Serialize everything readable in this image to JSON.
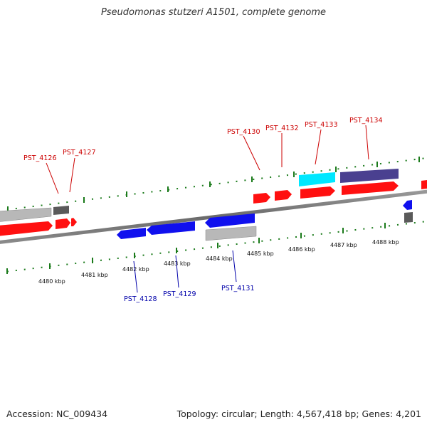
{
  "title": "Pseudomonas stutzeri A1501, complete genome",
  "footer": {
    "accession": "Accession: NC_009434",
    "topology": "Topology: circular; Length: 4,567,418 bp; Genes: 4,201"
  },
  "colors": {
    "forward_gene": "#ff1010",
    "reverse_gene": "#1010ee",
    "pseudo_gene": "#b8b8b8",
    "rna_gene": "#00e8ff",
    "slate_gene": "#4a4090",
    "dark_gene": "#5a5a5a",
    "tick_green": "#1a7a1a",
    "forward_label": "#cc0000",
    "reverse_label": "#0000aa"
  },
  "scale_labels": [
    "4480 kbp",
    "4481 kbp",
    "4482 kbp",
    "4483 kbp",
    "4484 kbp",
    "4485 kbp",
    "4486 kbp",
    "4487 kbp",
    "4488 kbp"
  ],
  "gene_labels_forward": [
    "PST_4126",
    "PST_4127",
    "PST_4130",
    "PST_4132",
    "PST_4133",
    "PST_4134"
  ],
  "gene_labels_reverse": [
    "PST_4128",
    "PST_4129",
    "PST_4131"
  ]
}
